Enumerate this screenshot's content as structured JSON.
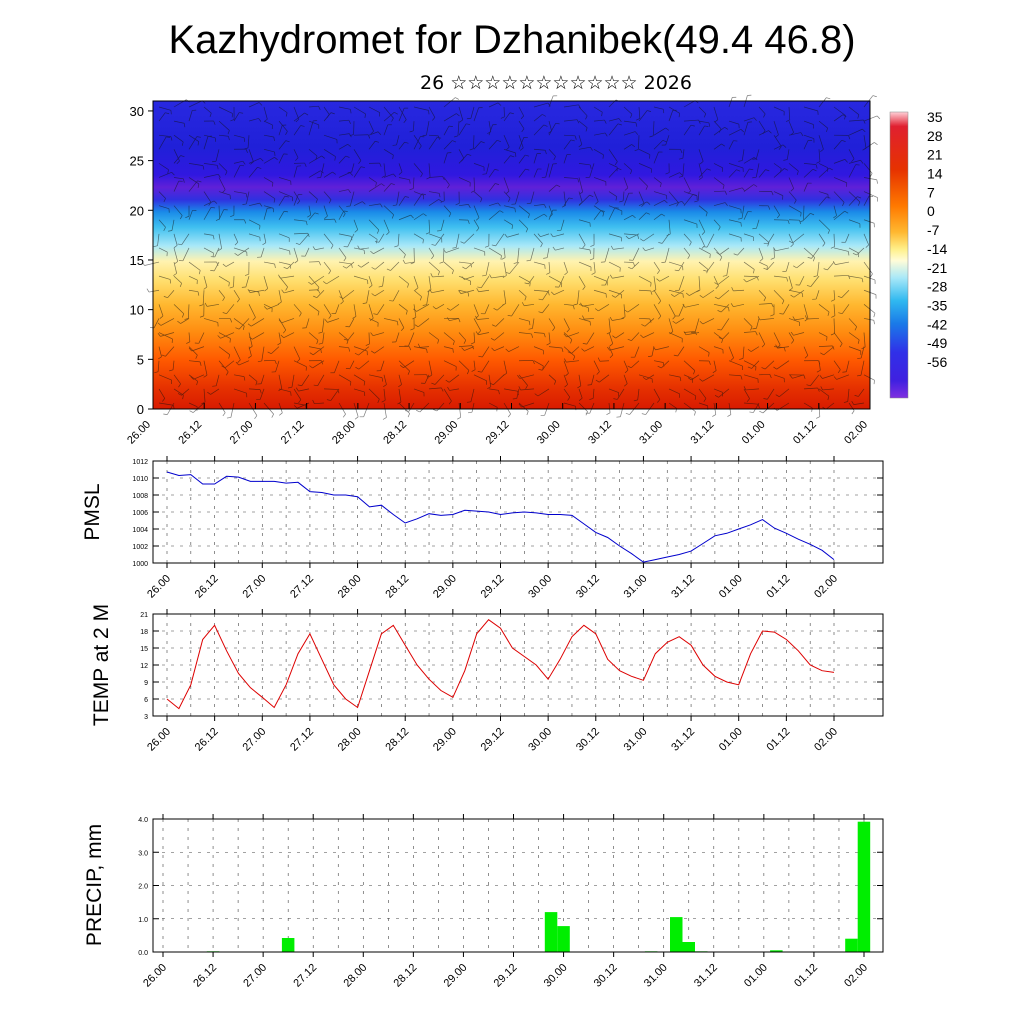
{
  "title": "Kazhydromet for Dzhanibek(49.4 46.8)",
  "subtitle": "26 ☆☆☆☆☆☆☆☆☆☆☆ 2026",
  "x_ticks": [
    "26.00",
    "26.12",
    "27.00",
    "27.12",
    "28.00",
    "28.12",
    "29.00",
    "29.12",
    "30.00",
    "30.12",
    "31.00",
    "31.12",
    "01.00",
    "01.12",
    "02.00"
  ],
  "colors": {
    "pmsl": "#0000cc",
    "temp": "#dd0000",
    "precip": "#00ee00"
  },
  "chart_data": [
    {
      "type": "heatmap",
      "title": "",
      "xlabel": "",
      "ylabel": "",
      "y_ticks": [
        "0",
        "5",
        "10",
        "15",
        "20",
        "25",
        "30"
      ],
      "ylim": [
        0,
        31
      ],
      "colorbar_labels": [
        "35",
        "28",
        "21",
        "14",
        "7",
        "0",
        "-7",
        "-14",
        "-21",
        "-28",
        "-35",
        "-42",
        "-49",
        "-56"
      ],
      "description_bands": [
        {
          "y_from": 0,
          "y_to": 5,
          "value": 28
        },
        {
          "y_from": 5,
          "y_to": 10,
          "value": 14
        },
        {
          "y_from": 10,
          "y_to": 15,
          "value": 0
        },
        {
          "y_from": 15,
          "y_to": 18,
          "value": -21
        },
        {
          "y_from": 18,
          "y_to": 22,
          "value": -42
        },
        {
          "y_from": 22,
          "y_to": 25,
          "value": -56
        },
        {
          "y_from": 25,
          "y_to": 31,
          "value": -56
        }
      ]
    },
    {
      "type": "line",
      "ylabel": "PMSL",
      "ylim": [
        1000,
        1012
      ],
      "y_ticks": [
        "1000",
        "1002",
        "1004",
        "1006",
        "1008",
        "1010",
        "1012"
      ],
      "x": [
        0,
        1,
        2,
        3,
        4,
        5,
        6,
        7,
        8,
        9,
        10,
        11,
        12,
        13,
        14,
        15,
        16,
        17,
        18,
        19,
        20,
        21,
        22,
        23,
        24,
        25,
        26,
        27,
        28,
        29,
        30,
        31,
        32,
        33,
        34,
        35,
        36,
        37,
        38,
        39,
        40,
        41,
        42,
        43,
        44,
        45,
        46,
        47,
        48,
        49,
        50,
        51,
        52,
        53,
        54,
        55,
        56
      ],
      "values": [
        1010.7,
        1010.3,
        1010.4,
        1009.3,
        1009.3,
        1010.2,
        1010.1,
        1009.6,
        1009.6,
        1009.6,
        1009.4,
        1009.5,
        1008.4,
        1008.3,
        1008.0,
        1008.0,
        1007.8,
        1006.6,
        1006.8,
        1005.7,
        1004.7,
        1005.2,
        1005.8,
        1005.6,
        1005.7,
        1006.2,
        1006.1,
        1006.0,
        1005.7,
        1005.9,
        1006.0,
        1005.9,
        1005.7,
        1005.7,
        1005.6,
        1004.6,
        1003.6,
        1003.0,
        1002.0,
        1001.1,
        1000.1,
        1000.4,
        1000.7,
        1001.0,
        1001.4,
        1002.3,
        1003.2,
        1003.5,
        1004.0,
        1004.5,
        1005.1,
        1004.1,
        1003.5,
        1002.8,
        1002.2,
        1001.5,
        1000.4
      ]
    },
    {
      "type": "line",
      "ylabel": "TEMP at 2 M",
      "ylim": [
        3,
        21
      ],
      "y_ticks": [
        "3",
        "6",
        "9",
        "12",
        "15",
        "18",
        "21"
      ],
      "x": [
        0,
        1,
        2,
        3,
        4,
        5,
        6,
        7,
        8,
        9,
        10,
        11,
        12,
        13,
        14,
        15,
        16,
        17,
        18,
        19,
        20,
        21,
        22,
        23,
        24,
        25,
        26,
        27,
        28,
        29,
        30,
        31,
        32,
        33,
        34,
        35,
        36,
        37,
        38,
        39,
        40,
        41,
        42,
        43,
        44,
        45,
        46,
        47,
        48,
        49,
        50,
        51,
        52,
        53,
        54,
        55,
        56
      ],
      "values": [
        6.0,
        4.3,
        8.5,
        16.5,
        19.0,
        14.5,
        10.5,
        8.0,
        6.3,
        4.5,
        8.5,
        14.0,
        17.5,
        13.0,
        8.5,
        6.0,
        4.5,
        11.0,
        17.5,
        19.0,
        15.5,
        12.0,
        9.5,
        7.5,
        6.3,
        11.0,
        17.5,
        20.0,
        18.5,
        15.0,
        13.5,
        12.0,
        9.5,
        13.0,
        17.0,
        19.0,
        17.5,
        13.0,
        11.0,
        10.0,
        9.3,
        14.0,
        16.0,
        17.0,
        15.5,
        12.0,
        10.0,
        9.0,
        8.5,
        14.0,
        18.0,
        17.8,
        16.5,
        14.5,
        12.0,
        11.0,
        10.7
      ]
    },
    {
      "type": "bar",
      "ylabel": "PRECIP, mm",
      "ylim": [
        0,
        4
      ],
      "y_ticks": [
        "0.0",
        "1.0",
        "2.0",
        "3.0",
        "4.0"
      ],
      "x": [
        0,
        1,
        2,
        3,
        4,
        5,
        6,
        7,
        8,
        9,
        10,
        11,
        12,
        13,
        14,
        15,
        16,
        17,
        18,
        19,
        20,
        21,
        22,
        23,
        24,
        25,
        26,
        27,
        28,
        29,
        30,
        31,
        32,
        33,
        34,
        35,
        36,
        37,
        38,
        39,
        40,
        41,
        42,
        43,
        44,
        45,
        46,
        47,
        48,
        49,
        50,
        51,
        52,
        53,
        54,
        55,
        56
      ],
      "values": [
        0,
        0,
        0,
        0,
        0.02,
        0,
        0,
        0,
        0,
        0,
        0.42,
        0,
        0,
        0,
        0,
        0,
        0,
        0,
        0,
        0,
        0,
        0,
        0,
        0,
        0,
        0,
        0,
        0,
        0,
        0,
        0,
        1.2,
        0.78,
        0,
        0,
        0,
        0,
        0,
        0,
        0.02,
        0,
        1.05,
        0.3,
        0.02,
        0,
        0,
        0,
        0,
        0,
        0.05,
        0,
        0,
        0,
        0,
        0,
        0.4,
        3.92
      ]
    }
  ]
}
